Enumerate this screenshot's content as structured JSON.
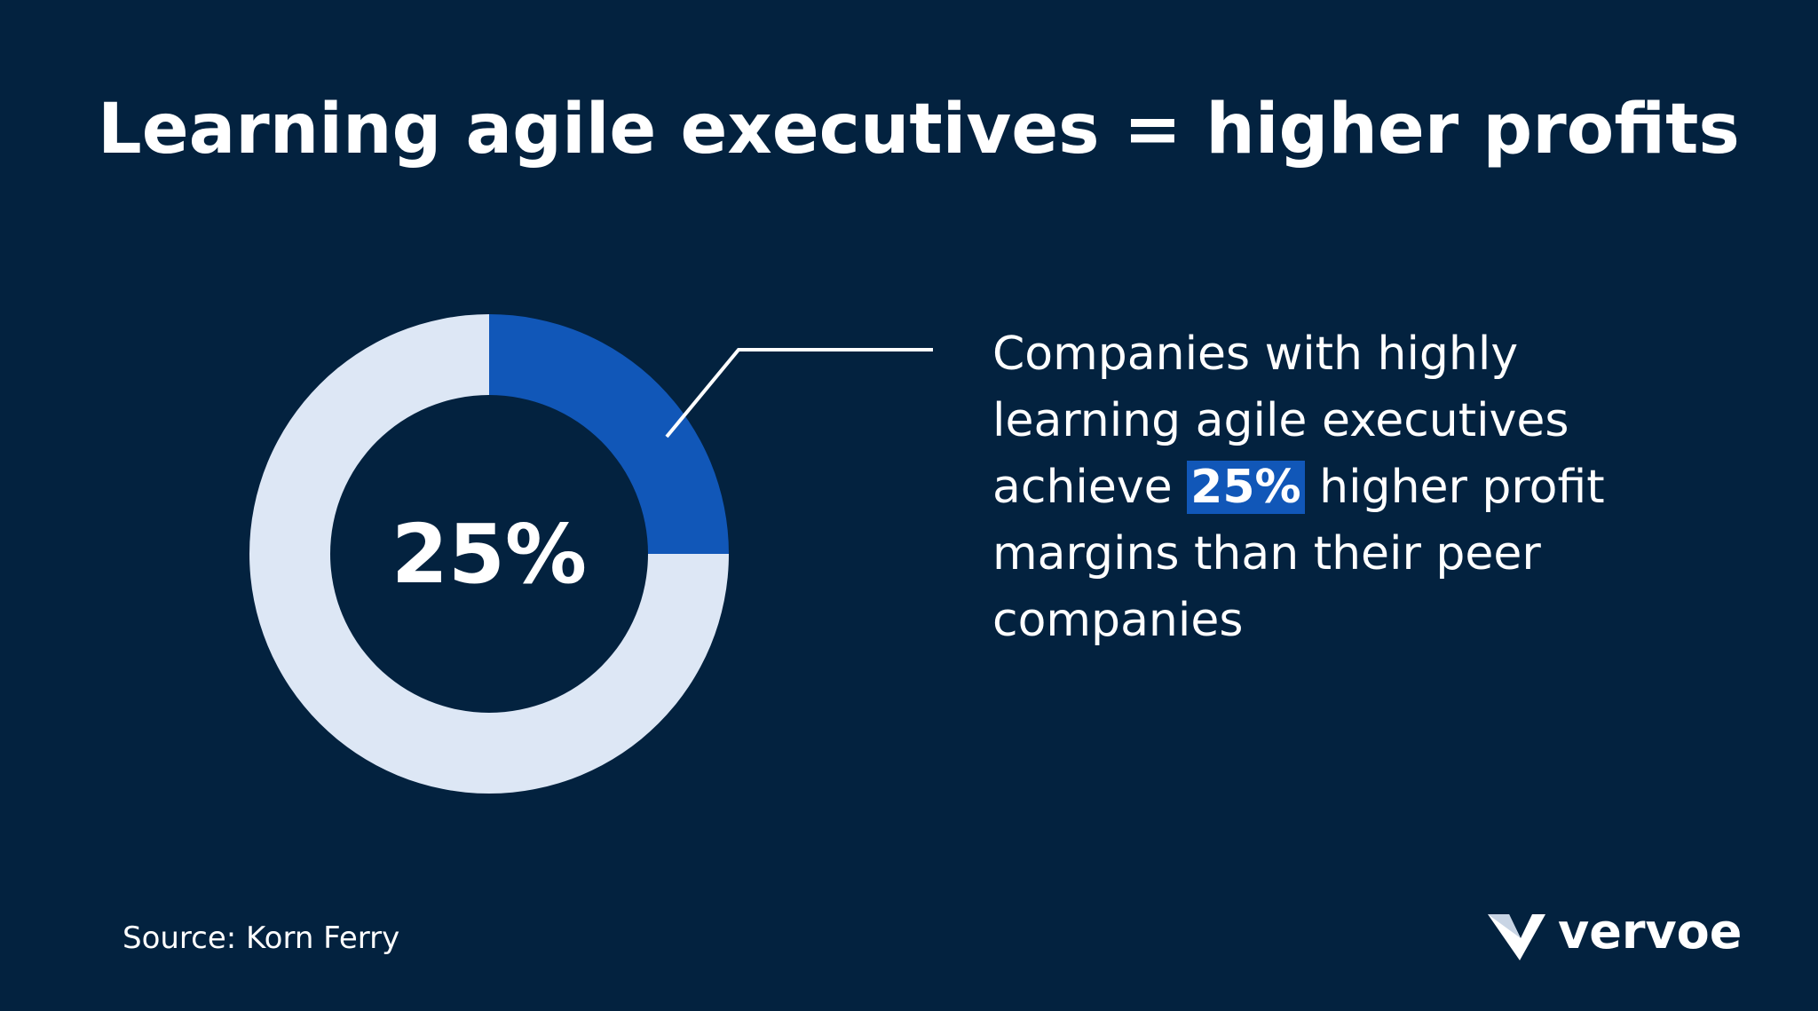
{
  "title": "Learning agile executives = higher profits",
  "chart_data": {
    "type": "donut",
    "values": [
      25,
      75
    ],
    "value_labels": [
      "25%",
      null
    ],
    "colors": [
      "#1157b8",
      "#dde7f5"
    ]
  },
  "annotation": {
    "before": "Companies with highly learning agile executives achieve",
    "highlight": "25%",
    "after": "higher profit margins than their peer companies"
  },
  "source": "Source: Korn Ferry",
  "logo": "vervoe"
}
